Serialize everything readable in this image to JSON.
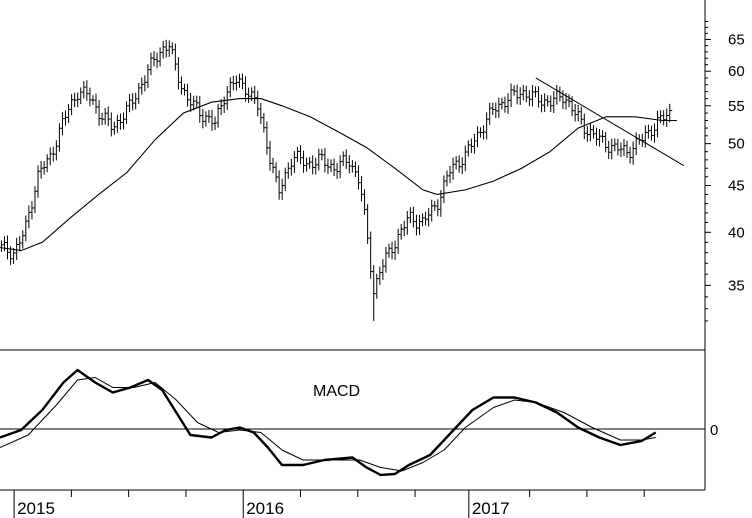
{
  "chart_data": [
    {
      "type": "ohlc",
      "scale": "log",
      "x_axis": [
        "2015",
        "2016",
        "2017"
      ],
      "y_ticks": [
        35,
        40,
        45,
        50,
        55,
        60,
        65
      ],
      "y_tick_labels": [
        "35",
        "40",
        "45",
        "50",
        "55",
        "60",
        "65"
      ],
      "ylim": [
        30.5,
        70
      ],
      "annotations": [
        "trendline",
        "moving-average"
      ],
      "price_path": [
        {
          "t": 0.0,
          "v": 38.5
        },
        {
          "t": 0.02,
          "v": 38.0
        },
        {
          "t": 0.035,
          "v": 40.0
        },
        {
          "t": 0.055,
          "v": 46.5
        },
        {
          "t": 0.07,
          "v": 48.0
        },
        {
          "t": 0.09,
          "v": 53.0
        },
        {
          "t": 0.11,
          "v": 57.0
        },
        {
          "t": 0.125,
          "v": 56.5
        },
        {
          "t": 0.145,
          "v": 53.5
        },
        {
          "t": 0.16,
          "v": 52.0
        },
        {
          "t": 0.185,
          "v": 55.0
        },
        {
          "t": 0.2,
          "v": 58.0
        },
        {
          "t": 0.22,
          "v": 62.0
        },
        {
          "t": 0.23,
          "v": 63.5
        },
        {
          "t": 0.24,
          "v": 64.0
        },
        {
          "t": 0.25,
          "v": 60.0
        },
        {
          "t": 0.265,
          "v": 56.0
        },
        {
          "t": 0.285,
          "v": 54.0
        },
        {
          "t": 0.305,
          "v": 52.5
        },
        {
          "t": 0.32,
          "v": 57.0
        },
        {
          "t": 0.335,
          "v": 58.5
        },
        {
          "t": 0.35,
          "v": 57.5
        },
        {
          "t": 0.365,
          "v": 55.0
        },
        {
          "t": 0.38,
          "v": 49.5
        },
        {
          "t": 0.395,
          "v": 44.0
        },
        {
          "t": 0.415,
          "v": 48.5
        },
        {
          "t": 0.435,
          "v": 47.5
        },
        {
          "t": 0.455,
          "v": 48.0
        },
        {
          "t": 0.475,
          "v": 47.0
        },
        {
          "t": 0.495,
          "v": 48.0
        },
        {
          "t": 0.51,
          "v": 45.5
        },
        {
          "t": 0.52,
          "v": 40.0
        },
        {
          "t": 0.53,
          "v": 34.5
        },
        {
          "t": 0.54,
          "v": 36.5
        },
        {
          "t": 0.56,
          "v": 39.0
        },
        {
          "t": 0.58,
          "v": 41.5
        },
        {
          "t": 0.6,
          "v": 41.0
        },
        {
          "t": 0.62,
          "v": 43.0
        },
        {
          "t": 0.64,
          "v": 47.0
        },
        {
          "t": 0.66,
          "v": 48.5
        },
        {
          "t": 0.68,
          "v": 51.5
        },
        {
          "t": 0.7,
          "v": 54.5
        },
        {
          "t": 0.72,
          "v": 56.0
        },
        {
          "t": 0.74,
          "v": 57.0
        },
        {
          "t": 0.76,
          "v": 56.0
        },
        {
          "t": 0.78,
          "v": 55.5
        },
        {
          "t": 0.8,
          "v": 56.5
        },
        {
          "t": 0.815,
          "v": 54.0
        },
        {
          "t": 0.83,
          "v": 52.0
        },
        {
          "t": 0.85,
          "v": 50.5
        },
        {
          "t": 0.87,
          "v": 49.5
        },
        {
          "t": 0.89,
          "v": 49.0
        },
        {
          "t": 0.91,
          "v": 50.5
        },
        {
          "t": 0.93,
          "v": 52.5
        },
        {
          "t": 0.95,
          "v": 54.0
        }
      ],
      "moving_average": [
        {
          "t": 0.0,
          "v": 38.5
        },
        {
          "t": 0.03,
          "v": 38.2
        },
        {
          "t": 0.06,
          "v": 39.0
        },
        {
          "t": 0.1,
          "v": 41.5
        },
        {
          "t": 0.14,
          "v": 44.0
        },
        {
          "t": 0.18,
          "v": 46.5
        },
        {
          "t": 0.22,
          "v": 50.5
        },
        {
          "t": 0.26,
          "v": 54.0
        },
        {
          "t": 0.3,
          "v": 55.5
        },
        {
          "t": 0.34,
          "v": 56.0
        },
        {
          "t": 0.37,
          "v": 56.0
        },
        {
          "t": 0.4,
          "v": 55.0
        },
        {
          "t": 0.44,
          "v": 53.5
        },
        {
          "t": 0.48,
          "v": 51.5
        },
        {
          "t": 0.52,
          "v": 49.5
        },
        {
          "t": 0.56,
          "v": 47.0
        },
        {
          "t": 0.6,
          "v": 44.5
        },
        {
          "t": 0.62,
          "v": 44.0
        },
        {
          "t": 0.66,
          "v": 44.5
        },
        {
          "t": 0.7,
          "v": 45.5
        },
        {
          "t": 0.74,
          "v": 47.0
        },
        {
          "t": 0.78,
          "v": 49.0
        },
        {
          "t": 0.82,
          "v": 52.0
        },
        {
          "t": 0.86,
          "v": 53.5
        },
        {
          "t": 0.9,
          "v": 53.5
        },
        {
          "t": 0.94,
          "v": 53.0
        },
        {
          "t": 0.96,
          "v": 53.0
        }
      ],
      "trendline": [
        {
          "t": 0.76,
          "v": 59.0
        },
        {
          "t": 0.97,
          "v": 47.3
        }
      ],
      "trendline_color": "#000000",
      "bar_color": "#000000"
    },
    {
      "type": "line",
      "title": "MACD",
      "y_ticks": [
        0
      ],
      "y_tick_labels": [
        "0"
      ],
      "ylim": [
        -1.0,
        1.6
      ],
      "series": [
        {
          "points": [
            {
              "t": 0.0,
              "v": -0.05
            },
            {
              "t": 0.03,
              "v": 0.1
            },
            {
              "t": 0.06,
              "v": 0.5
            },
            {
              "t": 0.09,
              "v": 1.05
            },
            {
              "t": 0.11,
              "v": 1.3
            },
            {
              "t": 0.135,
              "v": 1.05
            },
            {
              "t": 0.16,
              "v": 0.85
            },
            {
              "t": 0.185,
              "v": 0.95
            },
            {
              "t": 0.21,
              "v": 1.1
            },
            {
              "t": 0.23,
              "v": 0.9
            },
            {
              "t": 0.25,
              "v": 0.45
            },
            {
              "t": 0.27,
              "v": 0.0
            },
            {
              "t": 0.3,
              "v": -0.05
            },
            {
              "t": 0.32,
              "v": 0.1
            },
            {
              "t": 0.34,
              "v": 0.15
            },
            {
              "t": 0.36,
              "v": 0.05
            },
            {
              "t": 0.38,
              "v": -0.25
            },
            {
              "t": 0.4,
              "v": -0.6
            },
            {
              "t": 0.43,
              "v": -0.6
            },
            {
              "t": 0.46,
              "v": -0.5
            },
            {
              "t": 0.5,
              "v": -0.45
            },
            {
              "t": 0.52,
              "v": -0.65
            },
            {
              "t": 0.54,
              "v": -0.8
            },
            {
              "t": 0.56,
              "v": -0.78
            },
            {
              "t": 0.58,
              "v": -0.6
            },
            {
              "t": 0.61,
              "v": -0.4
            },
            {
              "t": 0.64,
              "v": 0.05
            },
            {
              "t": 0.67,
              "v": 0.5
            },
            {
              "t": 0.7,
              "v": 0.75
            },
            {
              "t": 0.73,
              "v": 0.75
            },
            {
              "t": 0.76,
              "v": 0.65
            },
            {
              "t": 0.79,
              "v": 0.45
            },
            {
              "t": 0.82,
              "v": 0.15
            },
            {
              "t": 0.85,
              "v": -0.05
            },
            {
              "t": 0.88,
              "v": -0.2
            },
            {
              "t": 0.91,
              "v": -0.12
            },
            {
              "t": 0.93,
              "v": 0.05
            }
          ]
        },
        {
          "points": [
            {
              "t": 0.0,
              "v": -0.25
            },
            {
              "t": 0.04,
              "v": 0.0
            },
            {
              "t": 0.08,
              "v": 0.6
            },
            {
              "t": 0.11,
              "v": 1.1
            },
            {
              "t": 0.135,
              "v": 1.15
            },
            {
              "t": 0.16,
              "v": 0.95
            },
            {
              "t": 0.19,
              "v": 0.95
            },
            {
              "t": 0.22,
              "v": 1.05
            },
            {
              "t": 0.25,
              "v": 0.7
            },
            {
              "t": 0.28,
              "v": 0.25
            },
            {
              "t": 0.31,
              "v": 0.05
            },
            {
              "t": 0.34,
              "v": 0.1
            },
            {
              "t": 0.37,
              "v": 0.05
            },
            {
              "t": 0.4,
              "v": -0.3
            },
            {
              "t": 0.43,
              "v": -0.5
            },
            {
              "t": 0.47,
              "v": -0.5
            },
            {
              "t": 0.51,
              "v": -0.5
            },
            {
              "t": 0.54,
              "v": -0.65
            },
            {
              "t": 0.57,
              "v": -0.72
            },
            {
              "t": 0.6,
              "v": -0.55
            },
            {
              "t": 0.63,
              "v": -0.3
            },
            {
              "t": 0.66,
              "v": 0.15
            },
            {
              "t": 0.7,
              "v": 0.55
            },
            {
              "t": 0.73,
              "v": 0.7
            },
            {
              "t": 0.76,
              "v": 0.65
            },
            {
              "t": 0.8,
              "v": 0.45
            },
            {
              "t": 0.84,
              "v": 0.15
            },
            {
              "t": 0.88,
              "v": -0.1
            },
            {
              "t": 0.91,
              "v": -0.1
            },
            {
              "t": 0.93,
              "v": -0.05
            }
          ]
        }
      ]
    }
  ]
}
